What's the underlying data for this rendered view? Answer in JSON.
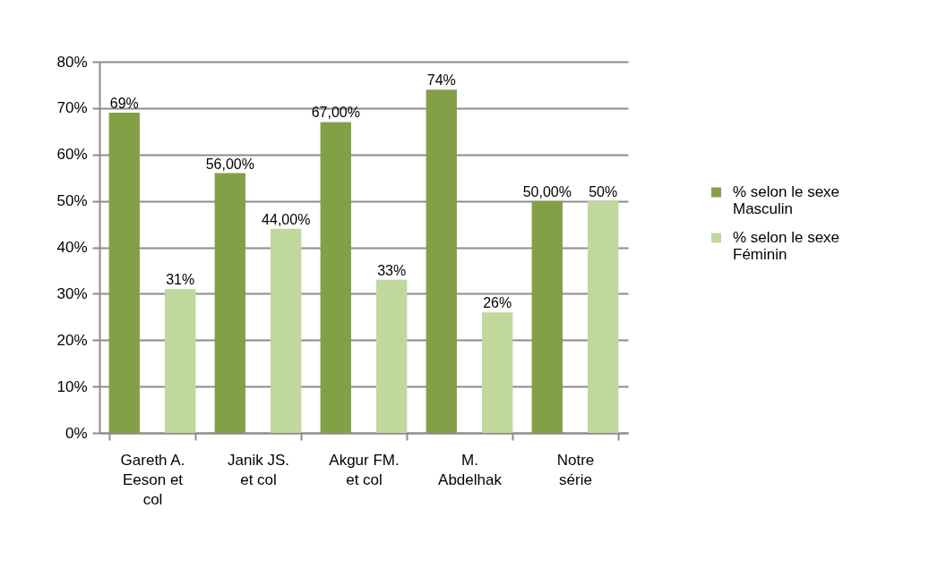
{
  "chart_data": {
    "type": "bar",
    "categories": [
      "Gareth A. Eeson et col",
      "Janik JS. et col",
      "Akgur FM. et col",
      "M. Abdelhak",
      "Notre série"
    ],
    "series": [
      {
        "name": "% selon le sexe Masculin",
        "color": "#84a047",
        "values": [
          69,
          56,
          67,
          74,
          50
        ],
        "value_labels": [
          "69%",
          "56,00%",
          "67,00%",
          "74%",
          "50,00%"
        ]
      },
      {
        "name": "% selon le sexe Féminin",
        "color": "#c0d89c",
        "values": [
          31,
          44,
          33,
          26,
          50
        ],
        "value_labels": [
          "31%",
          "44,00%",
          "33%",
          "26%",
          "50%"
        ]
      }
    ],
    "ylim": [
      0,
      80
    ],
    "yticks": [
      {
        "value": 0,
        "label": "0%"
      },
      {
        "value": 10,
        "label": "10%"
      },
      {
        "value": 20,
        "label": "20%"
      },
      {
        "value": 30,
        "label": "30%"
      },
      {
        "value": 40,
        "label": "40%"
      },
      {
        "value": 50,
        "label": "50%"
      },
      {
        "value": 60,
        "label": "60%"
      },
      {
        "value": 70,
        "label": "70%"
      },
      {
        "value": 80,
        "label": "80%"
      }
    ],
    "grid": "y",
    "legend": "right"
  }
}
